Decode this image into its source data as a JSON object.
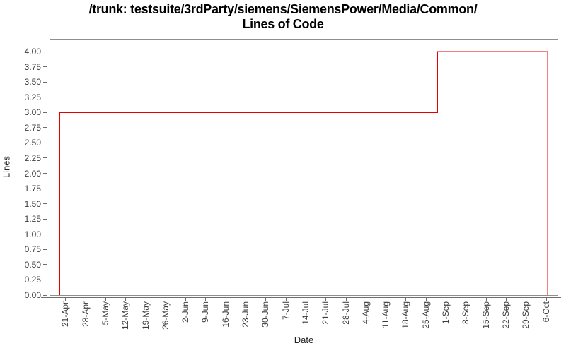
{
  "chart_data": {
    "type": "line",
    "line_style": "step",
    "title_line1": "/trunk: testsuite/3rdParty/siemens/SiemensPower/Media/Common/",
    "title_line2": "Lines of Code",
    "xlabel": "Date",
    "ylabel": "Lines",
    "grid": "off",
    "legend": "none",
    "x_tick_labels": [
      "21-Apr",
      "28-Apr",
      "5-May",
      "12-May",
      "19-May",
      "26-May",
      "2-Jun",
      "9-Jun",
      "16-Jun",
      "23-Jun",
      "30-Jun",
      "7-Jul",
      "14-Jul",
      "21-Jul",
      "28-Jul",
      "4-Aug",
      "11-Aug",
      "18-Aug",
      "25-Aug",
      "1-Sep",
      "8-Sep",
      "15-Sep",
      "22-Sep",
      "29-Sep",
      "6-Oct"
    ],
    "y_ticks": [
      {
        "value": 0.0,
        "label": "0.00"
      },
      {
        "value": 0.25,
        "label": "0.25"
      },
      {
        "value": 0.5,
        "label": "0.50"
      },
      {
        "value": 0.75,
        "label": "0.75"
      },
      {
        "value": 1.0,
        "label": "1.00"
      },
      {
        "value": 1.25,
        "label": "1.25"
      },
      {
        "value": 1.5,
        "label": "1.50"
      },
      {
        "value": 1.75,
        "label": "1.75"
      },
      {
        "value": 2.0,
        "label": "2.00"
      },
      {
        "value": 2.25,
        "label": "2.25"
      },
      {
        "value": 2.5,
        "label": "2.50"
      },
      {
        "value": 2.75,
        "label": "2.75"
      },
      {
        "value": 3.0,
        "label": "3.00"
      },
      {
        "value": 3.25,
        "label": "3.25"
      },
      {
        "value": 3.5,
        "label": "3.50"
      },
      {
        "value": 3.75,
        "label": "3.75"
      },
      {
        "value": 4.0,
        "label": "4.00"
      }
    ],
    "x_axis_range_weeks": [
      -0.81,
      24.6
    ],
    "y_axis_range": [
      0,
      4.21
    ],
    "series": [
      {
        "name": "Lines of Code",
        "color": "#e60000",
        "steps": [
          {
            "from_date": "19-Apr",
            "to_date": "29-Aug",
            "lines": 3
          },
          {
            "from_date": "29-Aug",
            "to_date": "6-Oct",
            "lines": 4
          }
        ],
        "path_weeks": [
          [
            -0.3,
            0
          ],
          [
            -0.3,
            3
          ],
          [
            18.56,
            3
          ],
          [
            18.56,
            4
          ],
          [
            24.07,
            4
          ],
          [
            24.07,
            0
          ]
        ]
      }
    ],
    "colors": {
      "line": "#e60000",
      "frame": "#8f8f8f",
      "axis": "#6e6e6e",
      "tick_label": "#3d3d3d",
      "title": "#000000",
      "background": "#ffffff"
    }
  }
}
